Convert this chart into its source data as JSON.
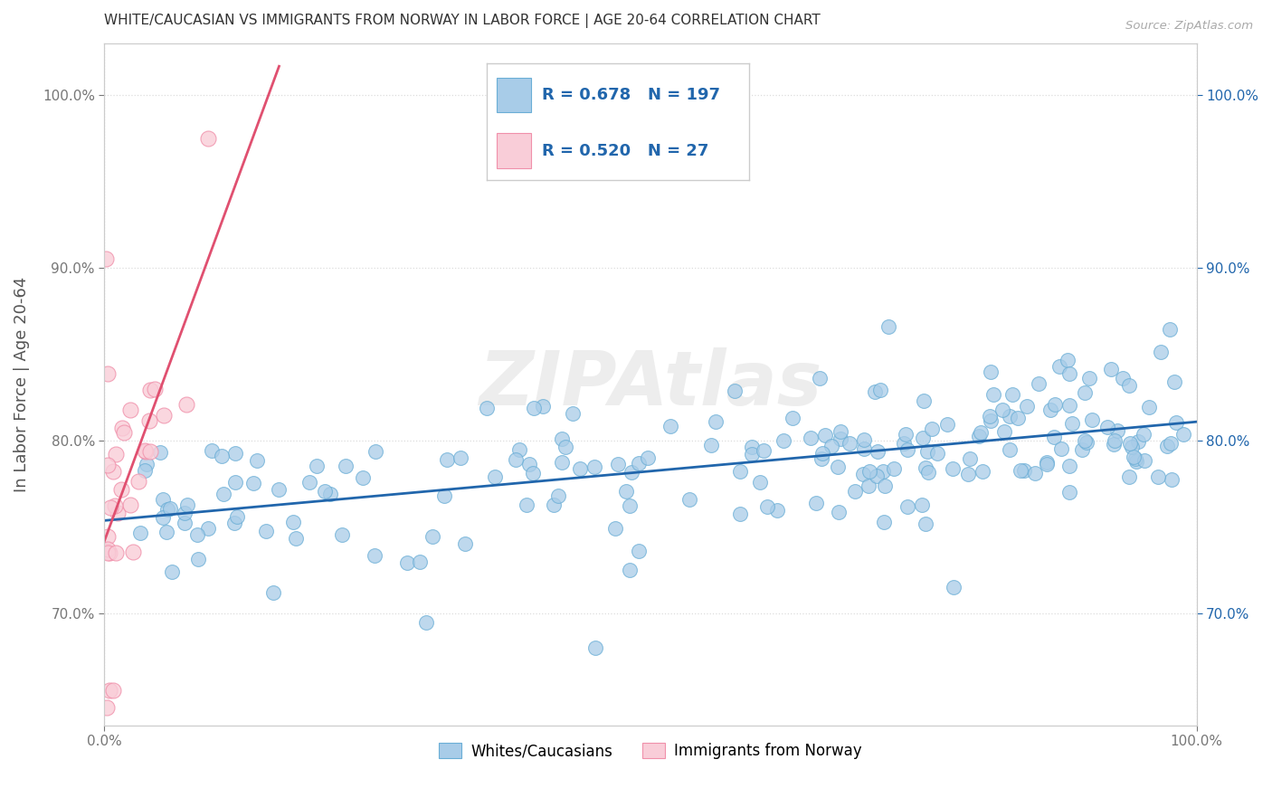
{
  "title": "WHITE/CAUCASIAN VS IMMIGRANTS FROM NORWAY IN LABOR FORCE | AGE 20-64 CORRELATION CHART",
  "source_text": "Source: ZipAtlas.com",
  "ylabel": "In Labor Force | Age 20-64",
  "blue_R": 0.678,
  "blue_N": 197,
  "pink_R": 0.52,
  "pink_N": 27,
  "blue_color": "#a8cce8",
  "blue_edge_color": "#6aaed6",
  "pink_color": "#f9cdd8",
  "pink_edge_color": "#f090aa",
  "blue_line_color": "#2166ac",
  "pink_line_color": "#e05070",
  "legend_label_blue": "Whites/Caucasians",
  "legend_label_pink": "Immigrants from Norway",
  "watermark": "ZIPAtlas",
  "title_color": "#333333",
  "axis_label_color": "#555555",
  "right_tick_color": "#2166ac",
  "grid_color": "#dddddd",
  "background_color": "#ffffff",
  "xlim": [
    0.0,
    1.0
  ],
  "ylim": [
    0.635,
    1.03
  ],
  "blue_seed": 42,
  "pink_seed": 77
}
